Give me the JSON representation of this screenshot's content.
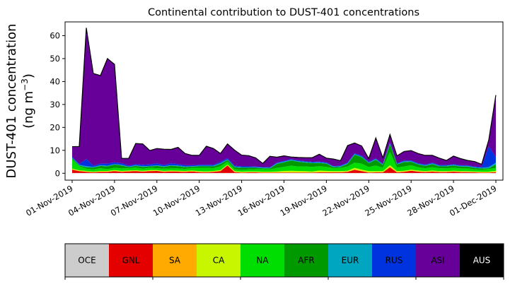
{
  "chart_data": {
    "type": "area",
    "stacked": true,
    "title": "Continental contribution to DUST-401 concentrations",
    "ylabel_main": "DUST-401 concentration",
    "ylabel_unit_prefix": "(ng m",
    "ylabel_unit_exp": "−3",
    "ylabel_unit_suffix": ")",
    "xlabel": "",
    "xlim": [
      "2019-10-31T12:00",
      "2019-12-01T12:00"
    ],
    "ylim": [
      -3,
      66
    ],
    "y_ticks": [
      0,
      10,
      20,
      30,
      40,
      50,
      60
    ],
    "x_ticks": [
      {
        "date": "2019-11-01",
        "label": "01-Nov-2019"
      },
      {
        "date": "2019-11-04",
        "label": "04-Nov-2019"
      },
      {
        "date": "2019-11-07",
        "label": "07-Nov-2019"
      },
      {
        "date": "2019-11-10",
        "label": "10-Nov-2019"
      },
      {
        "date": "2019-11-13",
        "label": "13-Nov-2019"
      },
      {
        "date": "2019-11-16",
        "label": "16-Nov-2019"
      },
      {
        "date": "2019-11-19",
        "label": "19-Nov-2019"
      },
      {
        "date": "2019-11-22",
        "label": "22-Nov-2019"
      },
      {
        "date": "2019-11-25",
        "label": "25-Nov-2019"
      },
      {
        "date": "2019-11-28",
        "label": "28-Nov-2019"
      },
      {
        "date": "2019-12-01",
        "label": "01-Dec-2019"
      }
    ],
    "grid": false,
    "x": [
      "2019-11-01T00:00",
      "2019-11-01T12:00",
      "2019-11-02T00:00",
      "2019-11-02T12:00",
      "2019-11-03T00:00",
      "2019-11-03T12:00",
      "2019-11-04T00:00",
      "2019-11-04T12:00",
      "2019-11-05T00:00",
      "2019-11-05T12:00",
      "2019-11-06T00:00",
      "2019-11-06T12:00",
      "2019-11-07T00:00",
      "2019-11-07T12:00",
      "2019-11-08T00:00",
      "2019-11-08T12:00",
      "2019-11-09T00:00",
      "2019-11-09T12:00",
      "2019-11-10T00:00",
      "2019-11-10T12:00",
      "2019-11-11T00:00",
      "2019-11-11T12:00",
      "2019-11-12T00:00",
      "2019-11-12T12:00",
      "2019-11-13T00:00",
      "2019-11-13T12:00",
      "2019-11-14T00:00",
      "2019-11-14T12:00",
      "2019-11-15T00:00",
      "2019-11-15T12:00",
      "2019-11-16T00:00",
      "2019-11-16T12:00",
      "2019-11-17T00:00",
      "2019-11-17T12:00",
      "2019-11-18T00:00",
      "2019-11-18T12:00",
      "2019-11-19T00:00",
      "2019-11-19T12:00",
      "2019-11-20T00:00",
      "2019-11-20T12:00",
      "2019-11-21T00:00",
      "2019-11-21T12:00",
      "2019-11-22T00:00",
      "2019-11-22T12:00",
      "2019-11-23T00:00",
      "2019-11-23T12:00",
      "2019-11-24T00:00",
      "2019-11-24T12:00",
      "2019-11-25T00:00",
      "2019-11-25T12:00",
      "2019-11-26T00:00",
      "2019-11-26T12:00",
      "2019-11-27T00:00",
      "2019-11-27T12:00",
      "2019-11-28T00:00",
      "2019-11-28T12:00",
      "2019-11-29T00:00",
      "2019-11-29T12:00",
      "2019-11-30T00:00",
      "2019-11-30T12:00",
      "2019-12-01T00:00"
    ],
    "series": [
      {
        "name": "OCE",
        "color": "#cccccc",
        "values": [
          0.1,
          0.1,
          0.1,
          0.1,
          0.1,
          0.1,
          0.1,
          0.1,
          0.1,
          0.1,
          0.1,
          0.1,
          0.1,
          0.1,
          0.1,
          0.1,
          0.1,
          0.1,
          0.1,
          0.1,
          0.1,
          0.1,
          0.1,
          0.1,
          0.1,
          0.1,
          0.1,
          0.1,
          0.1,
          0.1,
          0.1,
          0.1,
          0.1,
          0.1,
          0.1,
          0.1,
          0.1,
          0.1,
          0.1,
          0.1,
          0.1,
          0.1,
          0.1,
          0.1,
          0.1,
          0.1,
          0.1,
          0.1,
          0.1,
          0.1,
          0.1,
          0.1,
          0.1,
          0.1,
          0.1,
          0.1,
          0.1,
          0.1,
          0.1,
          0.1,
          0.1
        ]
      },
      {
        "name": "GNL",
        "color": "#e50000",
        "values": [
          1.5,
          0.8,
          0.5,
          0.3,
          0.5,
          0.5,
          0.8,
          0.5,
          0.7,
          0.8,
          0.6,
          0.8,
          0.9,
          0.5,
          0.7,
          0.6,
          0.5,
          0.7,
          0.4,
          0.3,
          0.5,
          0.8,
          3.3,
          0.4,
          0.2,
          0.3,
          0.3,
          0.2,
          0.2,
          0.2,
          0.2,
          0.2,
          0.2,
          0.2,
          0.2,
          0.3,
          0.3,
          0.3,
          0.3,
          0.5,
          1.4,
          0.8,
          0.2,
          0.3,
          0.3,
          2.5,
          0.3,
          0.5,
          1.0,
          0.6,
          0.4,
          0.6,
          0.4,
          0.4,
          0.6,
          0.4,
          0.4,
          0.3,
          0.2,
          0.2,
          0.4
        ]
      },
      {
        "name": "SA",
        "color": "#ffaa00",
        "values": [
          0.1,
          0.1,
          0.1,
          0.1,
          0.1,
          0.1,
          0.1,
          0.1,
          0.1,
          0.1,
          0.1,
          0.1,
          0.1,
          0.1,
          0.1,
          0.1,
          0.1,
          0.1,
          0.1,
          0.1,
          0.1,
          0.1,
          0.1,
          0.1,
          0.1,
          0.1,
          0.1,
          0.1,
          0.1,
          0.1,
          0.1,
          0.1,
          0.1,
          0.1,
          0.1,
          0.1,
          0.1,
          0.1,
          0.1,
          0.1,
          0.1,
          0.1,
          0.1,
          0.1,
          0.1,
          0.1,
          0.1,
          0.1,
          0.1,
          0.1,
          0.1,
          0.1,
          0.1,
          0.1,
          0.1,
          0.1,
          0.1,
          0.1,
          0.1,
          0.1,
          0.1
        ]
      },
      {
        "name": "CA",
        "color": "#c8f500",
        "values": [
          0.3,
          0.3,
          0.3,
          0.2,
          0.3,
          0.3,
          0.4,
          0.3,
          0.3,
          0.3,
          0.3,
          0.4,
          0.3,
          0.3,
          0.3,
          0.3,
          0.3,
          0.3,
          0.3,
          0.3,
          0.3,
          0.4,
          0.3,
          0.3,
          0.3,
          0.3,
          0.3,
          0.3,
          0.3,
          0.4,
          0.6,
          0.7,
          0.6,
          0.5,
          0.4,
          0.7,
          0.5,
          0.4,
          0.4,
          0.4,
          0.8,
          0.6,
          0.5,
          0.4,
          0.4,
          0.8,
          0.4,
          0.4,
          0.4,
          0.4,
          0.3,
          0.4,
          0.3,
          0.3,
          0.3,
          0.3,
          0.3,
          0.3,
          0.3,
          0.3,
          0.5
        ]
      },
      {
        "name": "NA",
        "color": "#00dd00",
        "values": [
          4.0,
          1.8,
          1.0,
          1.0,
          1.2,
          0.8,
          1.0,
          1.1,
          1.0,
          1.2,
          0.9,
          1.0,
          0.8,
          1.0,
          0.9,
          1.0,
          0.9,
          1.2,
          1.5,
          1.6,
          1.2,
          1.7,
          1.3,
          0.9,
          0.8,
          0.9,
          1.0,
          1.1,
          1.0,
          1.5,
          1.8,
          2.2,
          1.9,
          2.1,
          2.0,
          1.9,
          1.8,
          1.3,
          1.4,
          1.8,
          2.2,
          2.6,
          1.8,
          2.5,
          1.5,
          5.8,
          1.6,
          1.8,
          1.9,
          1.4,
          1.3,
          1.4,
          1.3,
          1.2,
          1.3,
          1.2,
          1.2,
          0.9,
          0.9,
          1.2,
          1.2
        ]
      },
      {
        "name": "AFR",
        "color": "#009900",
        "values": [
          0.5,
          0.3,
          0.6,
          0.8,
          1.0,
          1.2,
          1.4,
          1.3,
          0.5,
          0.7,
          0.8,
          0.6,
          1.0,
          0.8,
          1.2,
          1.0,
          0.8,
          0.5,
          0.6,
          0.6,
          0.8,
          1.0,
          0.7,
          0.8,
          0.9,
          0.7,
          0.6,
          0.4,
          0.4,
          1.8,
          2.0,
          2.3,
          2.1,
          1.7,
          1.6,
          1.4,
          1.4,
          0.4,
          0.5,
          1.2,
          3.5,
          2.8,
          1.7,
          2.5,
          1.2,
          3.5,
          1.3,
          2.0,
          1.5,
          1.2,
          1.0,
          1.4,
          0.8,
          0.9,
          1.0,
          0.8,
          0.8,
          0.6,
          0.5,
          0.3,
          1.5
        ]
      },
      {
        "name": "EUR",
        "color": "#00a5c0",
        "values": [
          0.3,
          0.3,
          0.5,
          0.3,
          0.3,
          0.3,
          0.2,
          0.3,
          0.2,
          0.3,
          0.3,
          0.2,
          0.3,
          0.3,
          0.2,
          0.3,
          0.3,
          0.2,
          0.3,
          0.3,
          0.3,
          0.4,
          0.3,
          0.3,
          0.3,
          0.3,
          0.2,
          0.3,
          0.3,
          0.3,
          0.3,
          0.3,
          0.3,
          0.3,
          0.3,
          0.3,
          0.3,
          0.3,
          0.3,
          0.3,
          0.3,
          0.3,
          0.3,
          0.3,
          0.3,
          0.3,
          0.3,
          0.3,
          0.3,
          0.3,
          0.3,
          0.3,
          0.3,
          0.3,
          0.3,
          0.3,
          0.3,
          0.3,
          0.3,
          0.5,
          0.8
        ]
      },
      {
        "name": "RUS",
        "color": "#0033e0",
        "values": [
          0.4,
          0.4,
          3.1,
          0.5,
          0.7,
          0.9,
          0.8,
          0.7,
          0.4,
          0.5,
          0.6,
          0.7,
          0.8,
          0.5,
          0.8,
          0.6,
          0.5,
          0.4,
          0.4,
          0.4,
          0.4,
          0.5,
          0.5,
          0.4,
          0.3,
          0.3,
          0.3,
          0.2,
          0.2,
          0.3,
          0.3,
          0.3,
          0.3,
          0.3,
          0.3,
          0.3,
          0.3,
          0.2,
          0.3,
          0.3,
          0.4,
          0.4,
          0.3,
          0.3,
          0.3,
          0.5,
          0.3,
          0.3,
          0.3,
          0.3,
          0.3,
          0.3,
          0.3,
          0.3,
          0.3,
          0.3,
          0.3,
          0.3,
          0.4,
          9.0,
          2.5
        ]
      },
      {
        "name": "ASI",
        "color": "#660099",
        "values": [
          4.4,
          7.6,
          57.2,
          40.2,
          38.4,
          45.8,
          42.7,
          2.1,
          3.2,
          9.0,
          9.1,
          6.0,
          6.5,
          6.9,
          6.1,
          7.3,
          5.1,
          4.3,
          4.1,
          8.1,
          7.1,
          3.6,
          6.2,
          6.8,
          4.9,
          4.7,
          3.8,
          1.6,
          4.8,
          2.3,
          2.2,
          0.9,
          1.3,
          1.5,
          1.8,
          3.2,
          1.8,
          3.1,
          2.1,
          7.4,
          4.4,
          4.2,
          1.4,
          8.9,
          2.5,
          3.3,
          3.2,
          4.0,
          4.3,
          4.2,
          4.0,
          3.2,
          3.0,
          2.0,
          3.5,
          2.9,
          2.1,
          2.2,
          1.1,
          2.9,
          27.0
        ]
      },
      {
        "name": "AUS",
        "color": "#000000",
        "values": [
          0,
          0,
          0,
          0,
          0,
          0,
          0,
          0,
          0,
          0,
          0,
          0,
          0,
          0,
          0,
          0,
          0,
          0,
          0,
          0,
          0,
          0,
          0,
          0,
          0,
          0,
          0,
          0,
          0,
          0,
          0,
          0,
          0,
          0,
          0,
          0,
          0,
          0,
          0,
          0,
          0,
          0,
          0,
          0,
          0,
          0,
          0,
          0,
          0,
          0,
          0,
          0,
          0,
          0,
          0,
          0,
          0,
          0,
          0,
          0,
          0
        ]
      }
    ],
    "legend": {
      "placement": "bottom-colorbar",
      "text_colors": [
        "#000000",
        "#000000",
        "#000000",
        "#000000",
        "#000000",
        "#000000",
        "#000000",
        "#000000",
        "#000000",
        "#ffffff"
      ]
    }
  }
}
